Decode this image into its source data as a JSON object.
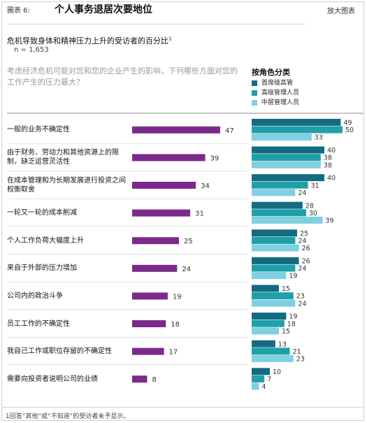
{
  "header": {
    "label": "圖表 6:",
    "title": "个人事务退居次要地位",
    "enlarge": "放大图表"
  },
  "subtitle": "危机导致身体和精神压力上升的受访者的百分比",
  "subtitle_sup": "1",
  "n": "n = 1,653",
  "question": "考虑经济危机可能对您和您的企业产生的影响，下列哪些方面对您的工作产生的压力最大？",
  "legend": {
    "title": "按角色分类",
    "items": [
      {
        "label": "首席级高管",
        "color": "#136b82"
      },
      {
        "label": "高级管理人员",
        "color": "#1fa0a8"
      },
      {
        "label": "中层管理人员",
        "color": "#7fd0e0"
      }
    ]
  },
  "footnote": "1回答“其他”或“不知道”的受访者未予显示。",
  "chart_data": {
    "type": "bar",
    "categories": [
      "一般的业务不确定性",
      "由于财务、劳动力和其他资源上的限制，缺乏运营灵活性",
      "在成本管理和为长期发展进行投资之间权衡取舍",
      "一轮又一轮的成本削减",
      "个人工作负荷大幅度上升",
      "来自于外部的压力增加",
      "公司内的政治斗争",
      "员工工作的不确定性",
      "我自己工作或职位存留的不确定性",
      "需要向投资者说明公司的业绩"
    ],
    "overall": {
      "color": "#7b2a8c",
      "values": [
        47,
        39,
        34,
        31,
        25,
        24,
        19,
        18,
        17,
        8
      ]
    },
    "series": [
      {
        "name": "首席级高管",
        "color": "#136b82",
        "values": [
          49,
          40,
          40,
          28,
          25,
          26,
          15,
          19,
          13,
          10
        ]
      },
      {
        "name": "高级管理人员",
        "color": "#1fa0a8",
        "values": [
          50,
          38,
          31,
          30,
          24,
          24,
          23,
          18,
          21,
          7
        ]
      },
      {
        "name": "中层管理人员",
        "color": "#7fd0e0",
        "values": [
          33,
          38,
          24,
          39,
          26,
          19,
          24,
          15,
          23,
          4
        ]
      }
    ],
    "ylim": [
      0,
      50
    ]
  }
}
